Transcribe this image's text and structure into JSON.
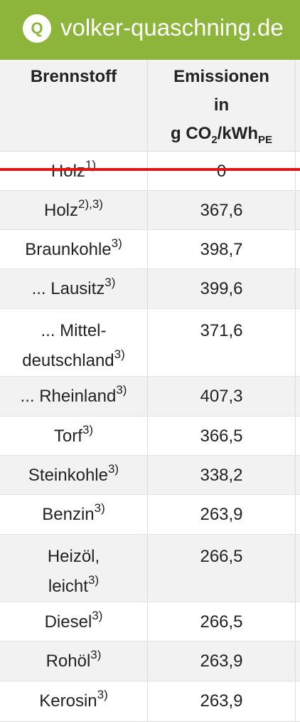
{
  "header": {
    "logo_letter": "Q",
    "site_title": "volker-quaschning.de",
    "accent_color": "#8db53b"
  },
  "table": {
    "col1_header": "Brennstoff",
    "col2_header_line1": "Emissionen",
    "col2_header_line2": "in",
    "col2_unit_prefix": "g CO",
    "col2_unit_sub1": "2",
    "col2_unit_mid": "/kWh",
    "col2_unit_sub2": "PE",
    "rows": [
      {
        "fuel": "Holz",
        "note": "1)",
        "value": "0",
        "struck": true
      },
      {
        "fuel": "Holz",
        "note": "2),3)",
        "value": "367,6"
      },
      {
        "fuel": "Braunkohle",
        "note": "3)",
        "value": "398,7"
      },
      {
        "fuel": "... Lausitz",
        "note": "3)",
        "value": "399,6"
      },
      {
        "fuel_line1": "... Mittel-",
        "fuel_line2": "deutschland",
        "note": "3)",
        "value": "371,6"
      },
      {
        "fuel": "... Rheinland",
        "note": "3)",
        "value": "407,3"
      },
      {
        "fuel": "Torf",
        "note": "3)",
        "value": "366,5"
      },
      {
        "fuel": "Steinkohle",
        "note": "3)",
        "value": "338,2"
      },
      {
        "fuel": "Benzin",
        "note": "3)",
        "value": "263,9"
      },
      {
        "fuel_line1": "Heizöl,",
        "fuel_line2": "leicht",
        "note": "3)",
        "value": "266,5"
      },
      {
        "fuel": "Diesel",
        "note": "3)",
        "value": "266,5"
      },
      {
        "fuel": "Rohöl",
        "note": "3)",
        "value": "263,9"
      },
      {
        "fuel": "Kerosin",
        "note": "3)",
        "value": "263,9"
      }
    ]
  },
  "colors": {
    "strike_line": "#e01515",
    "row_alt": "#f2f2f2"
  }
}
